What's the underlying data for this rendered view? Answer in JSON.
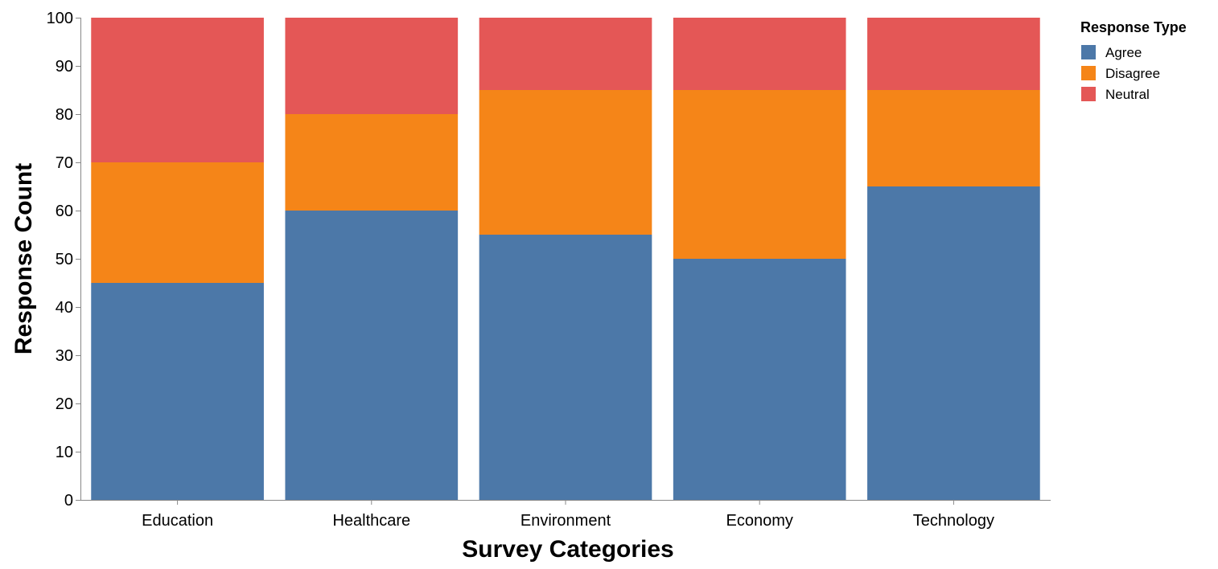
{
  "chart_data": {
    "type": "bar",
    "stacked": true,
    "title": "",
    "xlabel": "Survey Categories",
    "ylabel": "Response Count",
    "ylim": [
      0,
      100
    ],
    "yticks": [
      0,
      10,
      20,
      30,
      40,
      50,
      60,
      70,
      80,
      90,
      100
    ],
    "grid": false,
    "categories": [
      "Education",
      "Healthcare",
      "Environment",
      "Economy",
      "Technology"
    ],
    "series": [
      {
        "name": "Agree",
        "color": "#4c78a8",
        "values": [
          45,
          60,
          55,
          50,
          65
        ]
      },
      {
        "name": "Disagree",
        "color": "#f58518",
        "values": [
          25,
          20,
          30,
          35,
          20
        ]
      },
      {
        "name": "Neutral",
        "color": "#e45756",
        "values": [
          30,
          20,
          15,
          15,
          15
        ]
      }
    ],
    "legend": {
      "title": "Response Type",
      "placement": "right"
    }
  }
}
